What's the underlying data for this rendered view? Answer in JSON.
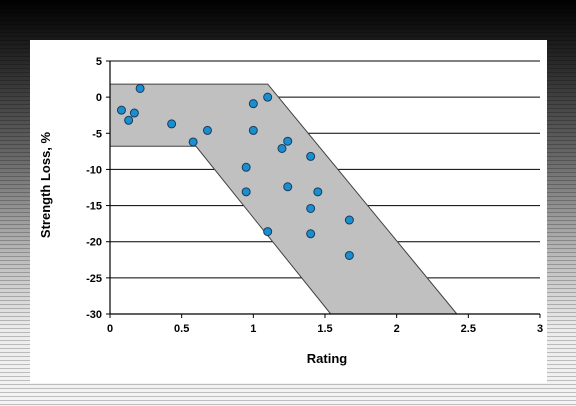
{
  "chart_data": {
    "type": "scatter",
    "xlabel": "Rating",
    "ylabel": "Strength Loss, %",
    "xlim": [
      0,
      3
    ],
    "ylim": [
      -30,
      5
    ],
    "x_ticks": [
      "0",
      "0.5",
      "1",
      "1.5",
      "2",
      "2.5",
      "3"
    ],
    "y_ticks": [
      "5",
      "0",
      "-5",
      "-10",
      "-15",
      "-20",
      "-25",
      "-30"
    ],
    "grid": "horizontal",
    "band": [
      [
        0,
        1.8
      ],
      [
        1.1,
        1.8
      ],
      [
        2.42,
        -30
      ],
      [
        1.54,
        -30
      ],
      [
        0.6,
        -6.8
      ],
      [
        0,
        -6.8
      ]
    ],
    "points": [
      {
        "x": 0.08,
        "y": -1.8
      },
      {
        "x": 0.13,
        "y": -3.2
      },
      {
        "x": 0.17,
        "y": -2.2
      },
      {
        "x": 0.21,
        "y": 1.2
      },
      {
        "x": 0.43,
        "y": -3.7
      },
      {
        "x": 0.58,
        "y": -6.2
      },
      {
        "x": 0.68,
        "y": -4.6
      },
      {
        "x": 0.95,
        "y": -9.7
      },
      {
        "x": 0.95,
        "y": -13.1
      },
      {
        "x": 1.0,
        "y": -0.9
      },
      {
        "x": 1.0,
        "y": -4.6
      },
      {
        "x": 1.1,
        "y": 0.0
      },
      {
        "x": 1.1,
        "y": -18.6
      },
      {
        "x": 1.2,
        "y": -7.1
      },
      {
        "x": 1.24,
        "y": -6.1
      },
      {
        "x": 1.24,
        "y": -12.4
      },
      {
        "x": 1.4,
        "y": -8.2
      },
      {
        "x": 1.4,
        "y": -15.4
      },
      {
        "x": 1.4,
        "y": -18.9
      },
      {
        "x": 1.45,
        "y": -13.1
      },
      {
        "x": 1.67,
        "y": -17.0
      },
      {
        "x": 1.67,
        "y": -21.9
      }
    ]
  },
  "colors": {
    "band_fill": "#c0c0c0",
    "band_stroke": "#404040",
    "point_fill": "#1a8fd0",
    "point_stroke": "#1a3a5a",
    "gridline": "#000000"
  }
}
